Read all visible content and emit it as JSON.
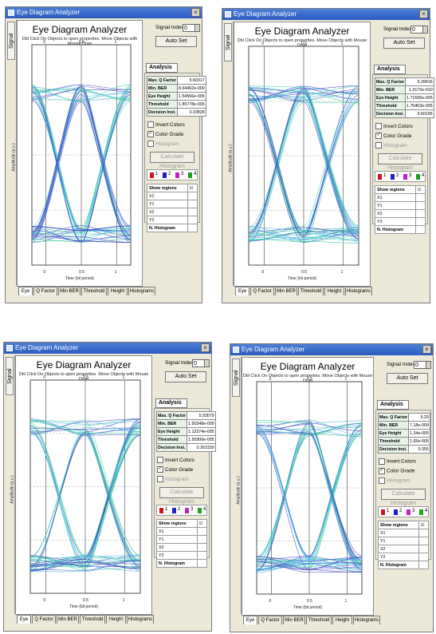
{
  "windows": [
    {
      "id": "w1",
      "title": "Eye Diagram Analyzer",
      "vtab": "Signal",
      "heading": "Eye Diagram Analyzer",
      "subtitle": "Dbl Click On Objects to open properties.  Move Objects with Mouse Drag",
      "signal_index_label": "Signal Index",
      "signal_index": "0",
      "autoset": "Auto Set",
      "analysis_title": "Analysis",
      "results": [
        [
          "Max. Q Factor",
          "5.60317"
        ],
        [
          "Min. BER",
          "8.64462e-009"
        ],
        [
          "Eye Height",
          "1.54566e-005"
        ],
        [
          "Threshold",
          "1.85778e-005"
        ],
        [
          "Decision Inst.",
          "0.33828"
        ]
      ],
      "invert_colors": "Invert Colors",
      "color_grade": "Color Grade",
      "histogram": "Histogram",
      "calculate": "Calculate Histogram",
      "legend": [
        "1",
        "2",
        "3",
        "4"
      ],
      "regions_header": "Show regions",
      "regions": [
        "X1",
        "Y1",
        "X2",
        "Y2"
      ],
      "n_histogram": "N. Histogram",
      "tabs": [
        "Eye",
        "Q Factor",
        "Min BER",
        "Threshold",
        "Height",
        "Histograms"
      ],
      "xlabel": "Time (bit period)",
      "xticks": [
        "0",
        "0.5",
        "1"
      ],
      "ylabel": "Amplitude (a.u.)"
    },
    {
      "id": "w2",
      "title": "Eye Diagram Analyzer",
      "vtab": "Signal",
      "heading": "Eye Diagram Analyzer",
      "subtitle": "Dbl Click On Objects to open properties.  Move Objects with Mouse Drag",
      "signal_index_label": "Signal Index",
      "signal_index": "0",
      "autoset": "Auto Set",
      "analysis_title": "Analysis",
      "results": [
        [
          "Max. Q Factor",
          "6.28416"
        ],
        [
          "Min. BER",
          "1.3172e-010"
        ],
        [
          "Eye Height",
          "1.71595e-005"
        ],
        [
          "Threshold",
          "1.75403e-005"
        ],
        [
          "Decision Inst.",
          "0.60156"
        ]
      ],
      "invert_colors": "Invert Colors",
      "color_grade": "Color Grade",
      "histogram": "Histogram",
      "calculate": "Calculate Histogram",
      "legend": [
        "1",
        "2",
        "3",
        "4"
      ],
      "regions_header": "Show regions",
      "regions": [
        "X1",
        "Y1",
        "X2",
        "Y2"
      ],
      "n_histogram": "N. Histogram",
      "tabs": [
        "Eye",
        "Q Factor",
        "Min BER",
        "Threshold",
        "Height",
        "Histograms"
      ],
      "xlabel": "Time (bit period)",
      "xticks": [
        "0",
        "0.5",
        "1"
      ],
      "ylabel": "Amplitude (a.u.)"
    },
    {
      "id": "w3",
      "title": "Eye Diagram Analyzer",
      "vtab": "Signal",
      "heading": "Eye Diagram Analyzer",
      "subtitle": "Dbl Click On Objects to open properties.  Move Objects with Mouse Drag",
      "signal_index_label": "Signal Index",
      "signal_index": "0",
      "autoset": "Auto Set",
      "analysis_title": "Analysis",
      "results": [
        [
          "Max. Q Factor",
          "5.93079"
        ],
        [
          "Min. BER",
          "1.50348e-009"
        ],
        [
          "Eye Height",
          "1.12274e-005"
        ],
        [
          "Threshold",
          "1.50306e-005"
        ],
        [
          "Decision Inst.",
          "0.363159"
        ]
      ],
      "invert_colors": "Invert Colors",
      "color_grade": "Color Grade",
      "histogram": "Histogram",
      "calculate": "Calculate Histogram",
      "legend": [
        "1",
        "2",
        "3",
        "4"
      ],
      "regions_header": "Show regions",
      "regions": [
        "X1",
        "Y1",
        "X2",
        "Y2"
      ],
      "n_histogram": "N. Histogram",
      "tabs": [
        "Eye",
        "Q Factor",
        "Min BER",
        "Threshold",
        "Height",
        "Histograms"
      ],
      "xlabel": "Time (bit period)",
      "xticks": [
        "0",
        "0.5",
        "1"
      ],
      "ylabel": "Amplitude (a.u.)"
    },
    {
      "id": "w4",
      "title": "Eye Diagram Analyzer",
      "vtab": "Signal",
      "heading": "Eye Diagram Analyzer",
      "subtitle": "Dbl Click On Objects to open properties.  Move Objects with Mouse Drag",
      "signal_index_label": "Signal Index",
      "signal_index": "0",
      "autoset": "Auto Set",
      "analysis_title": "Analysis",
      "results": [
        [
          "Max. Q Factor",
          "5.29"
        ],
        [
          "Min. BER",
          "7.18e-009"
        ],
        [
          "Eye Height",
          "1.34e-005"
        ],
        [
          "Threshold",
          "1.65e-005"
        ],
        [
          "Decision Inst.",
          "0.355"
        ]
      ],
      "invert_colors": "Invert Colors",
      "color_grade": "Color Grade",
      "histogram": "Histogram",
      "calculate": "Calculate Histogram",
      "legend": [
        "1",
        "2",
        "3",
        "4"
      ],
      "regions_header": "Show regions",
      "regions": [
        "X1",
        "Y1",
        "X2",
        "Y2"
      ],
      "n_histogram": "N. Histogram",
      "tabs": [
        "Eye",
        "Q Factor",
        "Min BER",
        "Threshold",
        "Height",
        "Histograms"
      ],
      "xlabel": "Time (bit period)",
      "xticks": [
        "0",
        "0.5",
        "1"
      ],
      "ylabel": "Amplitude (a.u.)"
    }
  ],
  "colors": {
    "legend": [
      "#d01020",
      "#2020c0",
      "#c020c0",
      "#20a020"
    ],
    "trace_low": "#4040c0",
    "trace_mid": "#40b0e0",
    "trace_dense": "#30d0a0"
  }
}
